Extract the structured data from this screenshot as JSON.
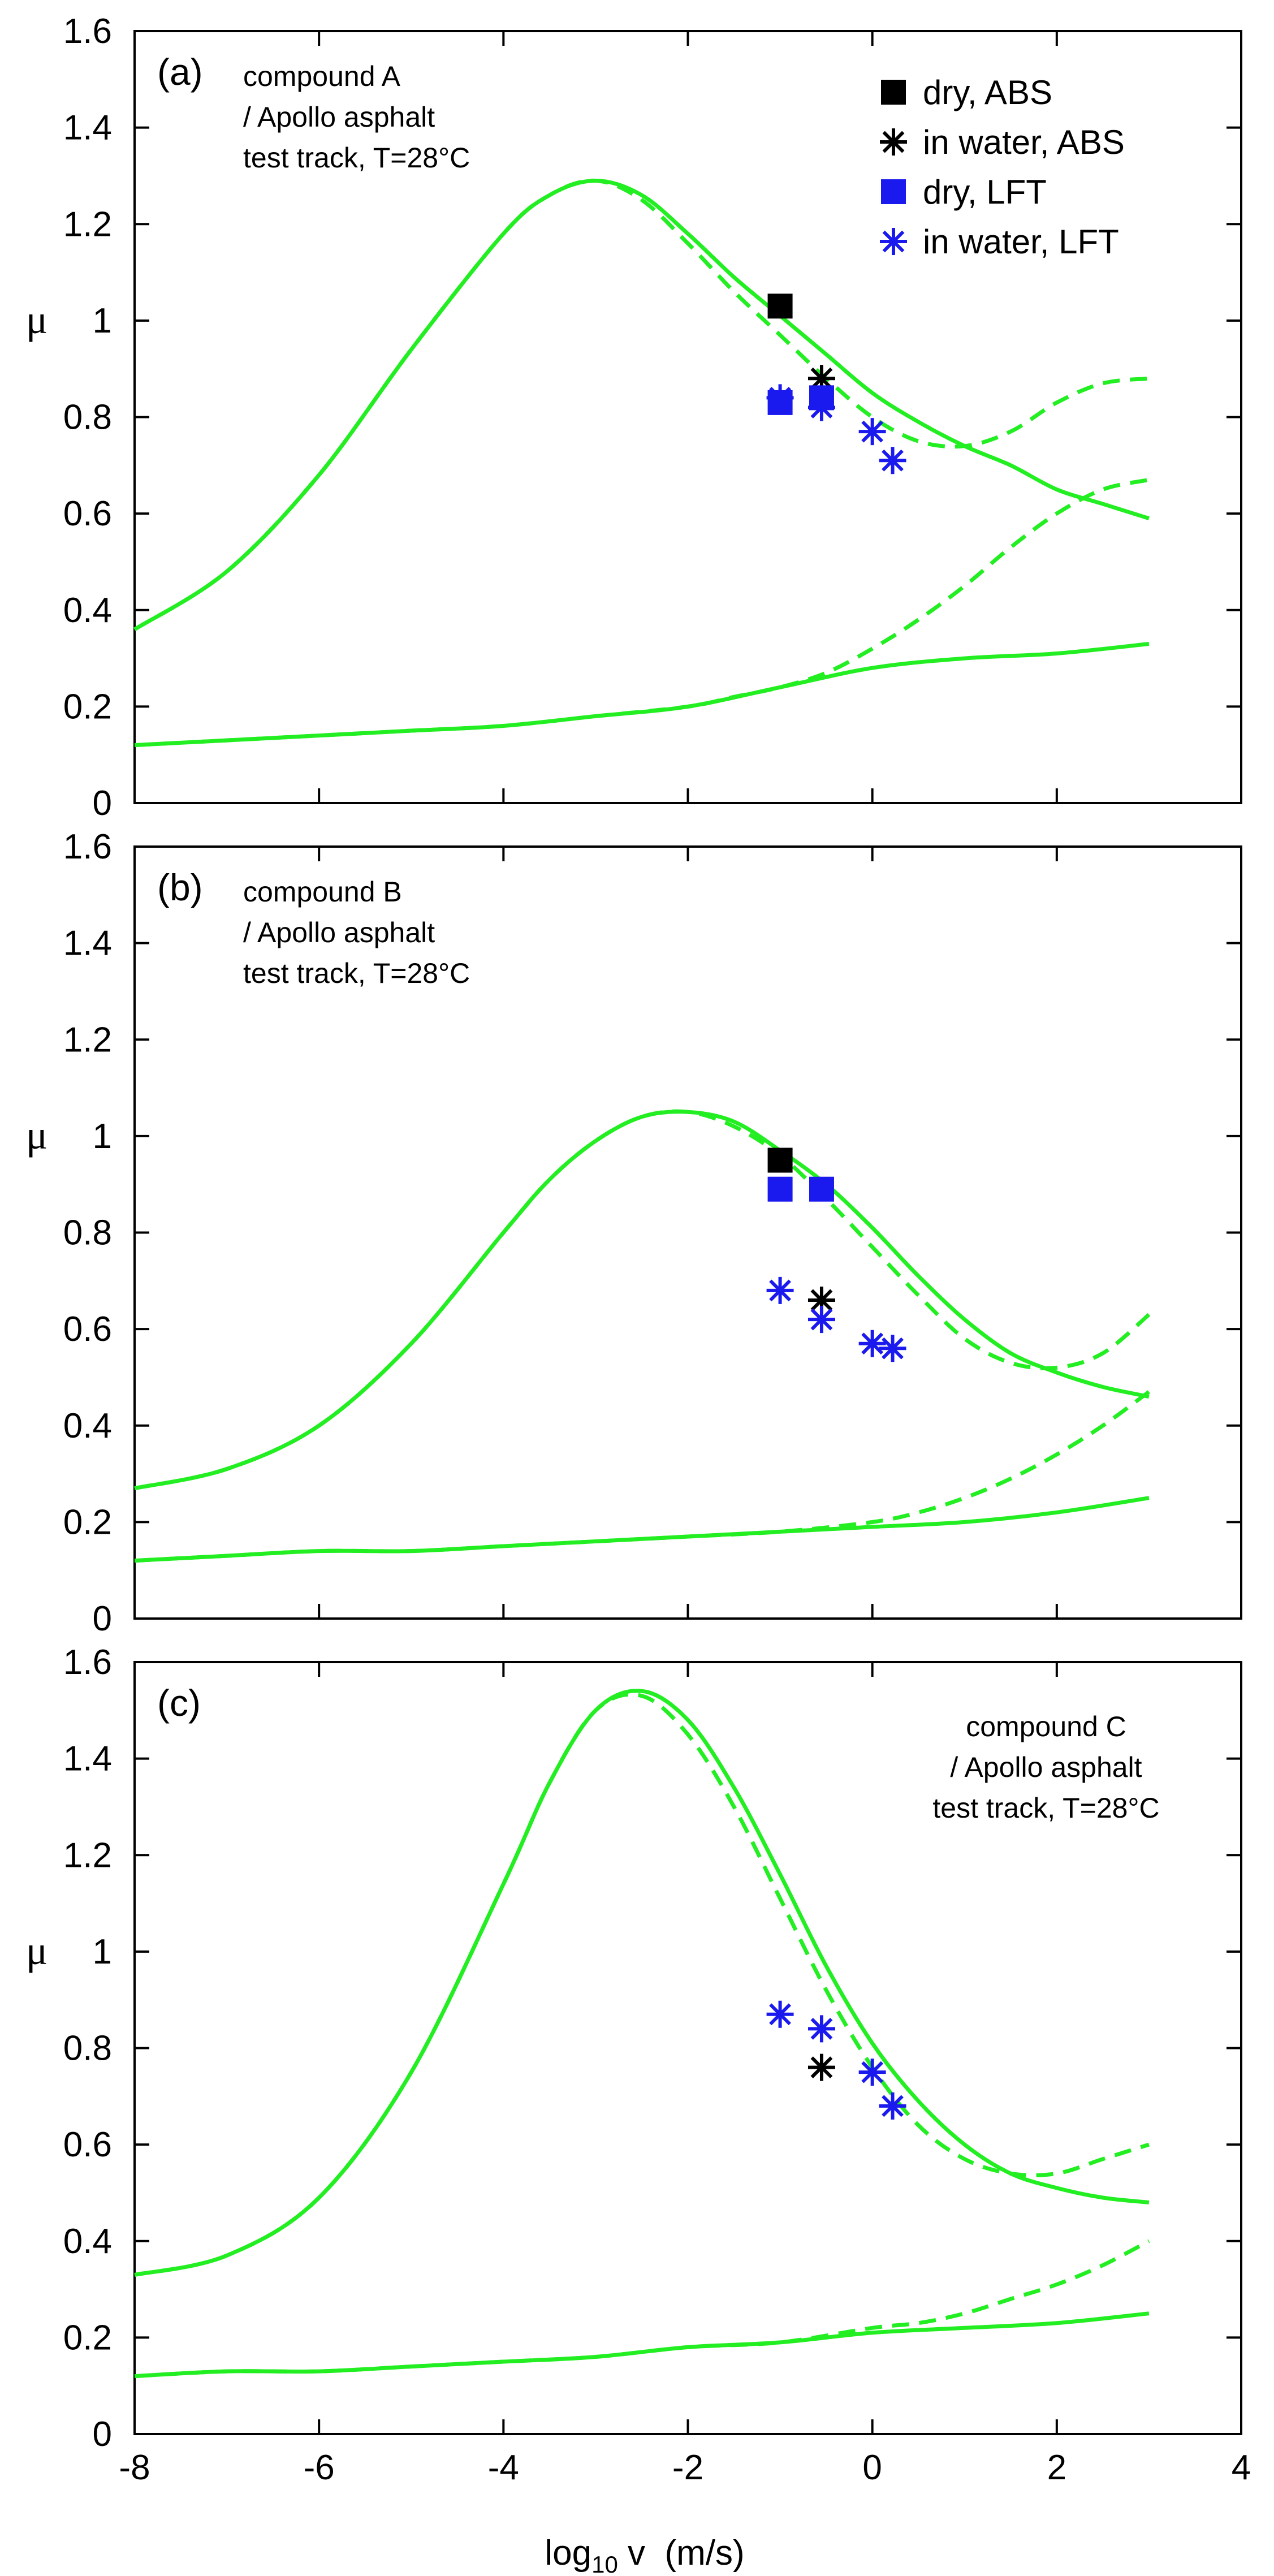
{
  "chart_data": {
    "type": "line",
    "x_axis": {
      "label_main": "log",
      "label_sub": "10",
      "label_rest": " v  (m/s)",
      "range": [
        -8,
        4
      ],
      "ticks": [
        "-8",
        "-6",
        "-4",
        "-2",
        "0",
        "2",
        "4"
      ]
    },
    "y_axis": {
      "label": "μ",
      "range": [
        0,
        1.6
      ],
      "ticks": [
        "0",
        "0.2",
        "0.4",
        "0.6",
        "0.8",
        "1",
        "1.2",
        "1.4",
        "1.6"
      ]
    },
    "colors": {
      "curve": "#22ee22",
      "abs": "#000000",
      "lft": "#1a1aee"
    },
    "legend": [
      {
        "label": "dry, ABS",
        "marker": "square",
        "color": "#000000"
      },
      {
        "label": "in water, ABS",
        "marker": "asterisk",
        "color": "#000000"
      },
      {
        "label": "dry, LFT",
        "marker": "square",
        "color": "#1a1aee"
      },
      {
        "label": "in water, LFT",
        "marker": "asterisk",
        "color": "#1a1aee"
      }
    ],
    "panels": [
      {
        "label": "(a)",
        "annotation": [
          "compound A",
          "/ Apollo asphalt",
          "test track, T=28°C"
        ],
        "annotation_anchor": "left",
        "series": [
          {
            "name": "upper solid",
            "style": "solid",
            "x": [
              -8,
              -7,
              -6,
              -5,
              -4,
              -3.5,
              -3,
              -2.5,
              -2,
              -1.5,
              -1,
              -0.5,
              0,
              0.5,
              1,
              1.5,
              2,
              2.5,
              3
            ],
            "y": [
              0.36,
              0.48,
              0.68,
              0.94,
              1.18,
              1.26,
              1.29,
              1.26,
              1.18,
              1.09,
              1.01,
              0.93,
              0.85,
              0.79,
              0.74,
              0.7,
              0.65,
              0.62,
              0.59
            ]
          },
          {
            "name": "upper dashed",
            "style": "dashed",
            "x": [
              -8,
              -7,
              -6,
              -5,
              -4,
              -3.5,
              -3,
              -2.5,
              -2,
              -1.5,
              -1,
              -0.5,
              0,
              0.5,
              1,
              1.5,
              2,
              2.5,
              3
            ],
            "y": [
              0.36,
              0.48,
              0.68,
              0.94,
              1.18,
              1.26,
              1.29,
              1.25,
              1.16,
              1.06,
              0.97,
              0.88,
              0.8,
              0.75,
              0.74,
              0.77,
              0.83,
              0.87,
              0.88
            ]
          },
          {
            "name": "lower solid",
            "style": "solid",
            "x": [
              -8,
              -7,
              -6,
              -5,
              -4,
              -3,
              -2,
              -1,
              0,
              1,
              2,
              3
            ],
            "y": [
              0.12,
              0.13,
              0.14,
              0.15,
              0.16,
              0.18,
              0.2,
              0.24,
              0.28,
              0.3,
              0.31,
              0.33
            ]
          },
          {
            "name": "lower dashed",
            "style": "dashed",
            "x": [
              -8,
              -7,
              -6,
              -5,
              -4,
              -3,
              -2,
              -1.5,
              -1,
              -0.5,
              0,
              0.5,
              1,
              1.5,
              2,
              2.5,
              3
            ],
            "y": [
              0.12,
              0.13,
              0.14,
              0.15,
              0.16,
              0.18,
              0.2,
              0.22,
              0.24,
              0.27,
              0.32,
              0.38,
              0.45,
              0.53,
              0.6,
              0.65,
              0.67
            ]
          }
        ],
        "points": [
          {
            "group": "dry, ABS",
            "marker": "square",
            "color": "#000000",
            "x": [
              -1.0
            ],
            "y": [
              1.03
            ]
          },
          {
            "group": "in water, ABS",
            "marker": "asterisk",
            "color": "#000000",
            "x": [
              -0.55
            ],
            "y": [
              0.88
            ]
          },
          {
            "group": "dry, LFT",
            "marker": "square",
            "color": "#1a1aee",
            "x": [
              -1.0,
              -0.55
            ],
            "y": [
              0.83,
              0.84
            ]
          },
          {
            "group": "in water, LFT",
            "marker": "asterisk",
            "color": "#1a1aee",
            "x": [
              -1.0,
              -0.55,
              0.0,
              0.22
            ],
            "y": [
              0.84,
              0.82,
              0.77,
              0.71
            ]
          }
        ]
      },
      {
        "label": "(b)",
        "annotation": [
          "compound B",
          "/ Apollo asphalt",
          "test track, T=28°C"
        ],
        "annotation_anchor": "left",
        "series": [
          {
            "name": "upper solid",
            "style": "solid",
            "x": [
              -8,
              -7,
              -6,
              -5,
              -4,
              -3.5,
              -3,
              -2.5,
              -2,
              -1.5,
              -1,
              -0.5,
              0,
              0.5,
              1,
              1.5,
              2,
              2.5,
              3
            ],
            "y": [
              0.27,
              0.31,
              0.4,
              0.57,
              0.8,
              0.91,
              0.99,
              1.04,
              1.05,
              1.03,
              0.97,
              0.9,
              0.81,
              0.71,
              0.62,
              0.55,
              0.51,
              0.48,
              0.46
            ]
          },
          {
            "name": "upper dashed",
            "style": "dashed",
            "x": [
              -8,
              -7,
              -6,
              -5,
              -4,
              -3.5,
              -3,
              -2.5,
              -2,
              -1.5,
              -1,
              -0.5,
              0,
              0.5,
              1,
              1.5,
              2,
              2.5,
              3
            ],
            "y": [
              0.27,
              0.31,
              0.4,
              0.57,
              0.8,
              0.91,
              0.99,
              1.04,
              1.05,
              1.02,
              0.96,
              0.87,
              0.77,
              0.67,
              0.58,
              0.53,
              0.52,
              0.55,
              0.63
            ]
          },
          {
            "name": "lower solid",
            "style": "solid",
            "x": [
              -8,
              -7,
              -6,
              -5,
              -4,
              -3,
              -2,
              -1,
              0,
              1,
              2,
              3
            ],
            "y": [
              0.12,
              0.13,
              0.14,
              0.14,
              0.15,
              0.16,
              0.17,
              0.18,
              0.19,
              0.2,
              0.22,
              0.25
            ]
          },
          {
            "name": "lower dashed",
            "style": "dashed",
            "x": [
              -8,
              -7,
              -6,
              -5,
              -4,
              -3,
              -2,
              -1,
              0,
              0.5,
              1,
              1.5,
              2,
              2.5,
              3
            ],
            "y": [
              0.12,
              0.13,
              0.14,
              0.14,
              0.15,
              0.16,
              0.17,
              0.18,
              0.2,
              0.22,
              0.25,
              0.29,
              0.34,
              0.4,
              0.47
            ]
          }
        ],
        "points": [
          {
            "group": "dry, ABS",
            "marker": "square",
            "color": "#000000",
            "x": [
              -1.0
            ],
            "y": [
              0.95
            ]
          },
          {
            "group": "in water, ABS",
            "marker": "asterisk",
            "color": "#000000",
            "x": [
              -0.55
            ],
            "y": [
              0.66
            ]
          },
          {
            "group": "dry, LFT",
            "marker": "square",
            "color": "#1a1aee",
            "x": [
              -1.0,
              -0.55
            ],
            "y": [
              0.89,
              0.89
            ]
          },
          {
            "group": "in water, LFT",
            "marker": "asterisk",
            "color": "#1a1aee",
            "x": [
              -1.0,
              -0.55,
              0.0,
              0.22
            ],
            "y": [
              0.68,
              0.62,
              0.57,
              0.56
            ]
          }
        ]
      },
      {
        "label": "(c)",
        "annotation": [
          "compound C",
          "/ Apollo asphalt",
          "test track, T=28°C"
        ],
        "annotation_anchor": "right",
        "series": [
          {
            "name": "upper solid",
            "style": "solid",
            "x": [
              -8,
              -7,
              -6,
              -5,
              -4,
              -3.5,
              -3,
              -2.5,
              -2,
              -1.5,
              -1,
              -0.5,
              0,
              0.5,
              1,
              1.5,
              2,
              2.5,
              3
            ],
            "y": [
              0.33,
              0.37,
              0.49,
              0.75,
              1.14,
              1.35,
              1.5,
              1.54,
              1.48,
              1.34,
              1.16,
              0.97,
              0.81,
              0.69,
              0.6,
              0.54,
              0.51,
              0.49,
              0.48
            ]
          },
          {
            "name": "upper dashed",
            "style": "dashed",
            "x": [
              -8,
              -7,
              -6,
              -5,
              -4,
              -3.5,
              -3,
              -2.5,
              -2,
              -1.5,
              -1,
              -0.5,
              0,
              0.5,
              1,
              1.5,
              2,
              2.5,
              3
            ],
            "y": [
              0.33,
              0.37,
              0.49,
              0.75,
              1.14,
              1.35,
              1.5,
              1.53,
              1.45,
              1.3,
              1.11,
              0.92,
              0.76,
              0.64,
              0.57,
              0.54,
              0.54,
              0.57,
              0.6
            ]
          },
          {
            "name": "lower solid",
            "style": "solid",
            "x": [
              -8,
              -7,
              -6,
              -5,
              -4,
              -3,
              -2,
              -1,
              0,
              1,
              2,
              3
            ],
            "y": [
              0.12,
              0.13,
              0.13,
              0.14,
              0.15,
              0.16,
              0.18,
              0.19,
              0.21,
              0.22,
              0.23,
              0.25
            ]
          },
          {
            "name": "lower dashed",
            "style": "dashed",
            "x": [
              -8,
              -7,
              -6,
              -5,
              -4,
              -3,
              -2,
              -1,
              0,
              0.5,
              1,
              1.5,
              2,
              2.5,
              3
            ],
            "y": [
              0.12,
              0.13,
              0.13,
              0.14,
              0.15,
              0.16,
              0.18,
              0.19,
              0.22,
              0.23,
              0.25,
              0.28,
              0.31,
              0.35,
              0.4
            ]
          }
        ],
        "points": [
          {
            "group": "in water, ABS",
            "marker": "asterisk",
            "color": "#000000",
            "x": [
              -0.55
            ],
            "y": [
              0.76
            ]
          },
          {
            "group": "in water, LFT",
            "marker": "asterisk",
            "color": "#1a1aee",
            "x": [
              -1.0,
              -0.55,
              0.0,
              0.22
            ],
            "y": [
              0.87,
              0.84,
              0.75,
              0.68
            ]
          }
        ]
      }
    ]
  }
}
